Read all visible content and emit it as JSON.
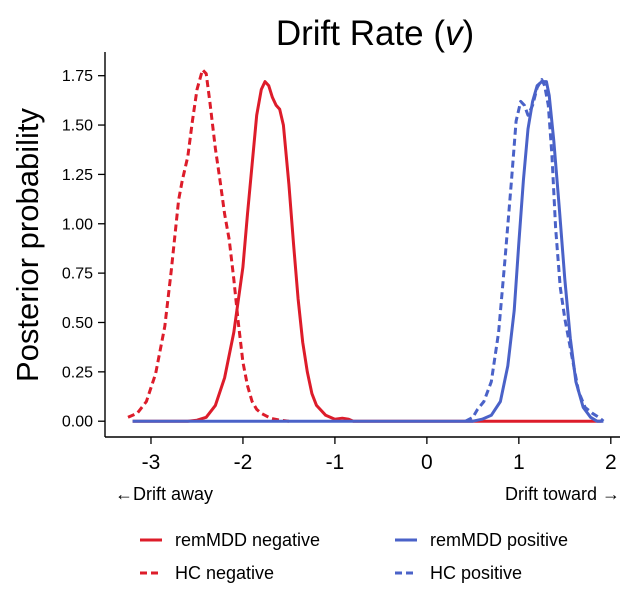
{
  "chart_data": {
    "type": "line",
    "title_main": "Drift Rate (",
    "title_var": "v",
    "title_end": ")",
    "ylabel": "Posterior probability",
    "xlim": [
      -3.5,
      2.1
    ],
    "ylim": [
      -0.08,
      1.87
    ],
    "x_ticks": [
      -3,
      -2,
      -1,
      0,
      1,
      2
    ],
    "x_tick_labels": [
      "-3",
      "-2",
      "-1",
      "0",
      "1",
      "2"
    ],
    "y_ticks": [
      0,
      0.25,
      0.5,
      0.75,
      1.0,
      1.25,
      1.5,
      1.75
    ],
    "y_tick_labels": [
      "0.00",
      "0.25",
      "0.50",
      "0.75",
      "1.00",
      "1.25",
      "1.50",
      "1.75"
    ],
    "direction_left": "←Drift away",
    "direction_right": "Drift toward →",
    "grid": false,
    "legend_position": "bottom",
    "series": [
      {
        "name": "remMDD negative",
        "color": "#dd1c2a",
        "dash": "solid",
        "points": [
          [
            -3.2,
            0
          ],
          [
            -2.6,
            0
          ],
          [
            -2.5,
            0.005
          ],
          [
            -2.4,
            0.02
          ],
          [
            -2.3,
            0.08
          ],
          [
            -2.2,
            0.22
          ],
          [
            -2.1,
            0.45
          ],
          [
            -2.0,
            0.78
          ],
          [
            -1.95,
            1.05
          ],
          [
            -1.9,
            1.3
          ],
          [
            -1.85,
            1.55
          ],
          [
            -1.8,
            1.68
          ],
          [
            -1.76,
            1.72
          ],
          [
            -1.72,
            1.7
          ],
          [
            -1.68,
            1.64
          ],
          [
            -1.64,
            1.6
          ],
          [
            -1.6,
            1.58
          ],
          [
            -1.56,
            1.5
          ],
          [
            -1.5,
            1.2
          ],
          [
            -1.45,
            0.9
          ],
          [
            -1.4,
            0.62
          ],
          [
            -1.35,
            0.4
          ],
          [
            -1.3,
            0.25
          ],
          [
            -1.25,
            0.14
          ],
          [
            -1.2,
            0.08
          ],
          [
            -1.1,
            0.03
          ],
          [
            -1.0,
            0.01
          ],
          [
            -0.92,
            0.015
          ],
          [
            -0.85,
            0.01
          ],
          [
            -0.8,
            0
          ],
          [
            1.8,
            0
          ],
          [
            1.9,
            0
          ]
        ]
      },
      {
        "name": "HC negative",
        "color": "#dd1c2a",
        "dash": "dashed",
        "points": [
          [
            -3.25,
            0.02
          ],
          [
            -3.15,
            0.04
          ],
          [
            -3.05,
            0.1
          ],
          [
            -2.95,
            0.24
          ],
          [
            -2.85,
            0.48
          ],
          [
            -2.78,
            0.76
          ],
          [
            -2.7,
            1.12
          ],
          [
            -2.66,
            1.22
          ],
          [
            -2.6,
            1.34
          ],
          [
            -2.55,
            1.52
          ],
          [
            -2.5,
            1.68
          ],
          [
            -2.44,
            1.78
          ],
          [
            -2.4,
            1.76
          ],
          [
            -2.36,
            1.62
          ],
          [
            -2.3,
            1.38
          ],
          [
            -2.25,
            1.22
          ],
          [
            -2.2,
            1.05
          ],
          [
            -2.15,
            0.92
          ],
          [
            -2.1,
            0.72
          ],
          [
            -2.05,
            0.5
          ],
          [
            -2.0,
            0.3
          ],
          [
            -1.95,
            0.18
          ],
          [
            -1.9,
            0.1
          ],
          [
            -1.85,
            0.06
          ],
          [
            -1.8,
            0.04
          ],
          [
            -1.7,
            0.015
          ],
          [
            -1.6,
            0.005
          ],
          [
            -1.5,
            0
          ]
        ]
      },
      {
        "name": "remMDD positive",
        "color": "#4a62c8",
        "dash": "solid",
        "points": [
          [
            -3.2,
            0
          ],
          [
            0.5,
            0
          ],
          [
            0.6,
            0.01
          ],
          [
            0.7,
            0.03
          ],
          [
            0.8,
            0.1
          ],
          [
            0.88,
            0.28
          ],
          [
            0.95,
            0.56
          ],
          [
            1.0,
            0.9
          ],
          [
            1.05,
            1.22
          ],
          [
            1.1,
            1.48
          ],
          [
            1.15,
            1.62
          ],
          [
            1.2,
            1.7
          ],
          [
            1.25,
            1.72
          ],
          [
            1.3,
            1.72
          ],
          [
            1.33,
            1.65
          ],
          [
            1.38,
            1.42
          ],
          [
            1.44,
            1.08
          ],
          [
            1.5,
            0.72
          ],
          [
            1.56,
            0.42
          ],
          [
            1.62,
            0.2
          ],
          [
            1.7,
            0.07
          ],
          [
            1.78,
            0.02
          ],
          [
            1.85,
            0
          ],
          [
            1.92,
            0
          ]
        ]
      },
      {
        "name": "HC positive",
        "color": "#4a62c8",
        "dash": "dashed",
        "points": [
          [
            0.42,
            0
          ],
          [
            0.5,
            0.02
          ],
          [
            0.55,
            0.06
          ],
          [
            0.62,
            0.1
          ],
          [
            0.7,
            0.2
          ],
          [
            0.78,
            0.45
          ],
          [
            0.85,
            0.82
          ],
          [
            0.92,
            1.22
          ],
          [
            0.97,
            1.52
          ],
          [
            1.02,
            1.62
          ],
          [
            1.06,
            1.6
          ],
          [
            1.1,
            1.55
          ],
          [
            1.15,
            1.6
          ],
          [
            1.2,
            1.69
          ],
          [
            1.25,
            1.73
          ],
          [
            1.28,
            1.7
          ],
          [
            1.32,
            1.6
          ],
          [
            1.36,
            1.35
          ],
          [
            1.4,
            0.98
          ],
          [
            1.45,
            0.68
          ],
          [
            1.5,
            0.52
          ],
          [
            1.58,
            0.32
          ],
          [
            1.65,
            0.15
          ],
          [
            1.72,
            0.07
          ],
          [
            1.8,
            0.04
          ],
          [
            1.87,
            0.02
          ],
          [
            1.92,
            0
          ]
        ]
      }
    ],
    "legend": [
      {
        "label": "remMDD negative",
        "color": "#dd1c2a",
        "dash": "solid"
      },
      {
        "label": "remMDD positive",
        "color": "#4a62c8",
        "dash": "solid"
      },
      {
        "label": "HC negative",
        "color": "#dd1c2a",
        "dash": "dashed"
      },
      {
        "label": "HC positive",
        "color": "#4a62c8",
        "dash": "dashed"
      }
    ]
  }
}
